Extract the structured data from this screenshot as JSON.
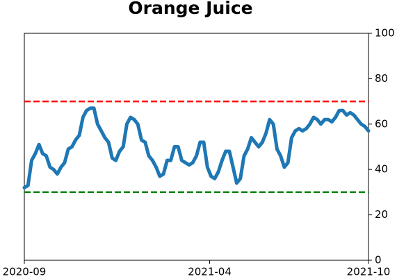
{
  "chart_data": {
    "type": "line",
    "title": "Orange Juice",
    "xlim": [
      "2020-09",
      "2021-10"
    ],
    "xticks": [
      "2020-09",
      "2021-04",
      "2021-10"
    ],
    "ylim": [
      0,
      100
    ],
    "yticks": [
      0,
      20,
      40,
      60,
      80,
      100
    ],
    "series": [
      {
        "color": "#1f77b4",
        "values": [
          32,
          33,
          44,
          47,
          51,
          47,
          46,
          41,
          40,
          38,
          41,
          43,
          49,
          50,
          53,
          55,
          63,
          66,
          67,
          67,
          60,
          57,
          54,
          52,
          45,
          44,
          48,
          50,
          60,
          63,
          62,
          60,
          53,
          52,
          46,
          44,
          41,
          37,
          38,
          44,
          44,
          50,
          50,
          44,
          43,
          42,
          43,
          46,
          52,
          52,
          41,
          37,
          36,
          39,
          44,
          48,
          48,
          41,
          34,
          36,
          46,
          49,
          54,
          52,
          50,
          52,
          56,
          62,
          60,
          49,
          46,
          41,
          43,
          54,
          57,
          58,
          57,
          58,
          60,
          63,
          62,
          60,
          62,
          62,
          61,
          63,
          66,
          66,
          64,
          65,
          64,
          62,
          60,
          59,
          57
        ]
      }
    ],
    "hlines": [
      {
        "value": 70,
        "color": "red"
      },
      {
        "value": 30,
        "color": "green"
      }
    ]
  }
}
